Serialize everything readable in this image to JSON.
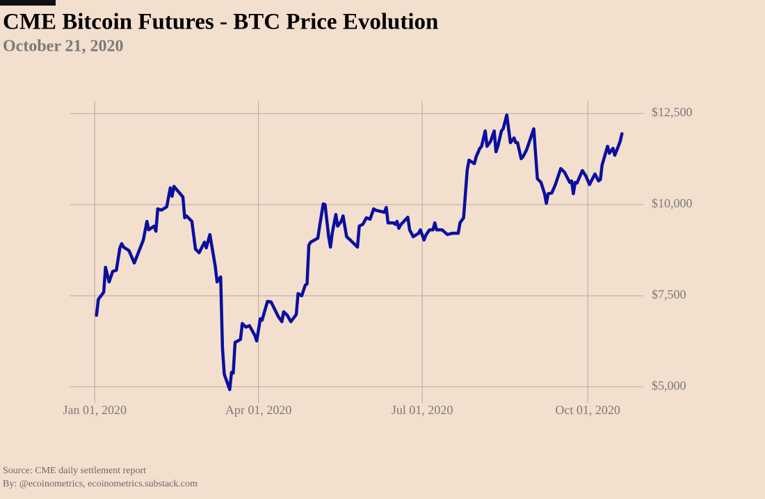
{
  "chart_data": {
    "type": "line",
    "title": "CME Bitcoin Futures - BTC Price Evolution",
    "subtitle": "October 21, 2020",
    "source": "Source: CME daily settlement report",
    "byline": "By: @ecoinometrics, ecoinometrics.substack.com",
    "x": [
      "2020-01-02",
      "2020-01-03",
      "2020-01-06",
      "2020-01-07",
      "2020-01-09",
      "2020-01-11",
      "2020-01-13",
      "2020-01-15",
      "2020-01-16",
      "2020-01-17",
      "2020-01-20",
      "2020-01-23",
      "2020-01-28",
      "2020-01-30",
      "2020-01-31",
      "2020-02-03",
      "2020-02-04",
      "2020-02-05",
      "2020-02-07",
      "2020-02-10",
      "2020-02-12",
      "2020-02-13",
      "2020-02-14",
      "2020-02-19",
      "2020-02-20",
      "2020-02-21",
      "2020-02-24",
      "2020-02-26",
      "2020-02-28",
      "2020-03-02",
      "2020-03-03",
      "2020-03-05",
      "2020-03-08",
      "2020-03-09",
      "2020-03-11",
      "2020-03-12",
      "2020-03-13",
      "2020-03-16",
      "2020-03-17",
      "2020-03-18",
      "2020-03-19",
      "2020-03-22",
      "2020-03-23",
      "2020-03-25",
      "2020-03-27",
      "2020-03-30",
      "2020-03-31",
      "2020-04-02",
      "2020-04-03",
      "2020-04-06",
      "2020-04-08",
      "2020-04-12",
      "2020-04-14",
      "2020-04-15",
      "2020-04-17",
      "2020-04-19",
      "2020-04-22",
      "2020-04-23",
      "2020-04-25",
      "2020-04-27",
      "2020-04-28",
      "2020-04-29",
      "2020-04-30",
      "2020-05-04",
      "2020-05-05",
      "2020-05-07",
      "2020-05-08",
      "2020-05-10",
      "2020-05-11",
      "2020-05-12",
      "2020-05-14",
      "2020-05-15",
      "2020-05-17",
      "2020-05-18",
      "2020-05-20",
      "2020-05-22",
      "2020-05-26",
      "2020-05-27",
      "2020-05-29",
      "2020-05-31",
      "2020-06-02",
      "2020-06-04",
      "2020-06-05",
      "2020-06-10",
      "2020-06-11",
      "2020-06-12",
      "2020-06-15",
      "2020-06-16",
      "2020-06-17",
      "2020-06-18",
      "2020-06-19",
      "2020-06-23",
      "2020-06-24",
      "2020-06-26",
      "2020-06-29",
      "2020-06-30",
      "2020-07-02",
      "2020-07-03",
      "2020-07-05",
      "2020-07-07",
      "2020-07-08",
      "2020-07-09",
      "2020-07-12",
      "2020-07-15",
      "2020-07-18",
      "2020-07-21",
      "2020-07-22",
      "2020-07-24",
      "2020-07-26",
      "2020-07-27",
      "2020-07-30",
      "2020-07-31",
      "2020-08-02",
      "2020-08-03",
      "2020-08-05",
      "2020-08-06",
      "2020-08-08",
      "2020-08-10",
      "2020-08-11",
      "2020-08-12",
      "2020-08-14",
      "2020-08-15",
      "2020-08-17",
      "2020-08-19",
      "2020-08-21",
      "2020-08-22",
      "2020-08-23",
      "2020-08-25",
      "2020-08-26",
      "2020-08-28",
      "2020-08-30",
      "2020-09-01",
      "2020-09-03",
      "2020-09-05",
      "2020-09-07",
      "2020-09-08",
      "2020-09-09",
      "2020-09-11",
      "2020-09-13",
      "2020-09-16",
      "2020-09-18",
      "2020-09-21",
      "2020-09-22",
      "2020-09-23",
      "2020-09-24",
      "2020-09-25",
      "2020-09-28",
      "2020-09-30",
      "2020-10-02",
      "2020-10-03",
      "2020-10-05",
      "2020-10-07",
      "2020-10-08",
      "2020-10-09",
      "2020-10-12",
      "2020-10-13",
      "2020-10-15",
      "2020-10-16",
      "2020-10-18",
      "2020-10-19",
      "2020-10-20"
    ],
    "series": [
      {
        "name": "BTC",
        "color": "#0a0f9e",
        "values": [
          6965,
          7400,
          7600,
          8280,
          7880,
          8170,
          8200,
          8815,
          8930,
          8835,
          8740,
          8400,
          9030,
          9540,
          9310,
          9410,
          9270,
          9885,
          9850,
          9940,
          10460,
          10230,
          10500,
          10210,
          9640,
          9690,
          9540,
          8780,
          8680,
          8970,
          8815,
          9180,
          8300,
          7880,
          8015,
          6070,
          5345,
          4925,
          5400,
          5380,
          6220,
          6300,
          6740,
          6640,
          6680,
          6410,
          6260,
          6870,
          6830,
          7345,
          7330,
          6930,
          6790,
          7060,
          6965,
          6790,
          6985,
          7560,
          7500,
          7790,
          7825,
          8890,
          8970,
          9080,
          9410,
          10020,
          10000,
          9120,
          8835,
          9215,
          9730,
          9410,
          9540,
          9690,
          9120,
          9030,
          8835,
          9410,
          9460,
          9640,
          9600,
          9885,
          9850,
          9790,
          9925,
          9500,
          9500,
          9460,
          9540,
          9350,
          9445,
          9655,
          9310,
          9120,
          9215,
          9310,
          9030,
          9160,
          9310,
          9310,
          9500,
          9310,
          9310,
          9180,
          9215,
          9215,
          9500,
          9640,
          10950,
          11220,
          11125,
          11315,
          11545,
          11600,
          12020,
          11600,
          11735,
          12020,
          11450,
          11600,
          12020,
          12080,
          12460,
          11700,
          11830,
          11700,
          11700,
          11260,
          11315,
          11505,
          11790,
          12080,
          10710,
          10610,
          10300,
          10035,
          10300,
          10320,
          10550,
          10990,
          10895,
          10610,
          10650,
          10300,
          10610,
          10590,
          10935,
          10780,
          10550,
          10650,
          10840,
          10650,
          10690,
          11090,
          11600,
          11410,
          11545,
          11355,
          11600,
          11735,
          11945
        ]
      }
    ],
    "xlim": [
      "2019-12-18",
      "2020-10-28"
    ],
    "xticks": [
      {
        "value": "2020-01-01",
        "label": "Jan 01, 2020"
      },
      {
        "value": "2020-04-01",
        "label": "Apr 01, 2020"
      },
      {
        "value": "2020-07-01",
        "label": "Jul 01, 2020"
      },
      {
        "value": "2020-10-01",
        "label": "Oct 01, 2020"
      }
    ],
    "ylim": [
      4750,
      12750
    ],
    "yticks": [
      {
        "value": 5000,
        "label": "$5,000"
      },
      {
        "value": 7500,
        "label": "$7,500"
      },
      {
        "value": 10000,
        "label": "$10,000"
      },
      {
        "value": 12500,
        "label": "$12,500"
      }
    ],
    "grid": true
  }
}
